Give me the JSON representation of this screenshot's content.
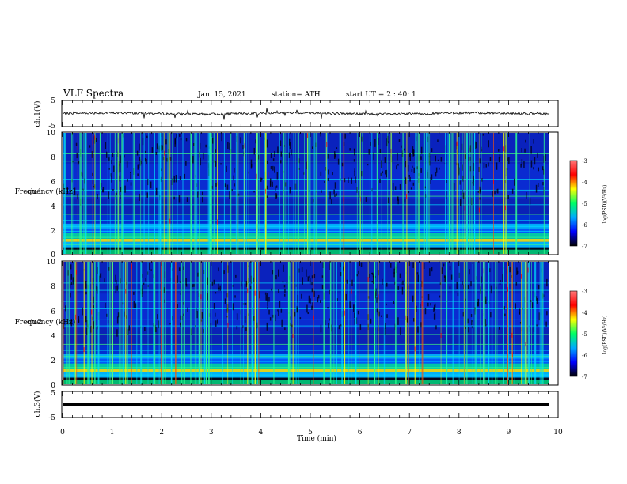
{
  "header": {
    "title": "VLF Spectra",
    "date": "Jan. 15, 2021",
    "station": "station= ATH",
    "start": "start  UT =   2 : 40: 1"
  },
  "colors": {
    "background": "#ffffff",
    "axes": "#000000",
    "colormap": [
      "#000000",
      "#0000ff",
      "#00aaff",
      "#00ff66",
      "#ffff00",
      "#ff0000",
      "#ff7777"
    ]
  },
  "chart_data": [
    {
      "type": "line",
      "name": "ch1-waveform",
      "ylabel": "ch.1(V)",
      "ytick_labels": [
        "5",
        "-5"
      ],
      "ylim": [
        -5,
        5
      ],
      "xlim": [
        0,
        10
      ]
    },
    {
      "type": "heatmap",
      "name": "ch1-spectrogram",
      "ylabel": "ch.1\nFrequency (kHz)",
      "ytick_labels": [
        "0",
        "2",
        "4",
        "6",
        "8",
        "10"
      ],
      "ylim": [
        0,
        10
      ],
      "xlim": [
        0,
        9.83
      ],
      "colorbar": {
        "ticks": [
          "-3",
          "-4",
          "-5",
          "-6",
          "-7"
        ],
        "range": [
          -7,
          -3
        ],
        "label": "log(PSD)(V²/Hz)"
      }
    },
    {
      "type": "heatmap",
      "name": "ch2-spectrogram",
      "ylabel": "ch.2\nFrequency (kHz)",
      "ytick_labels": [
        "0",
        "2",
        "4",
        "6",
        "8",
        "10"
      ],
      "ylim": [
        0,
        10
      ],
      "xlim": [
        0,
        9.83
      ],
      "colorbar": {
        "ticks": [
          "-3",
          "-4",
          "-5",
          "-6",
          "-7"
        ],
        "range": [
          -7,
          -3
        ],
        "label": "log(PSD)(V²/Hz)"
      }
    },
    {
      "type": "line",
      "name": "ch3-waveform",
      "ylabel": "ch.3(V)",
      "ytick_labels": [
        "5",
        "-5"
      ],
      "ylim": [
        -5,
        5
      ],
      "xlim": [
        0,
        10
      ],
      "series": [
        {
          "values": [
            {
              "x": 0,
              "y": 0
            },
            {
              "x": 9.83,
              "y": 0
            }
          ]
        }
      ]
    }
  ],
  "xaxis": {
    "label": "Time (min)",
    "tick_labels": [
      "0",
      "1",
      "2",
      "3",
      "4",
      "5",
      "6",
      "7",
      "8",
      "9",
      "10"
    ],
    "range": [
      0,
      10
    ]
  }
}
